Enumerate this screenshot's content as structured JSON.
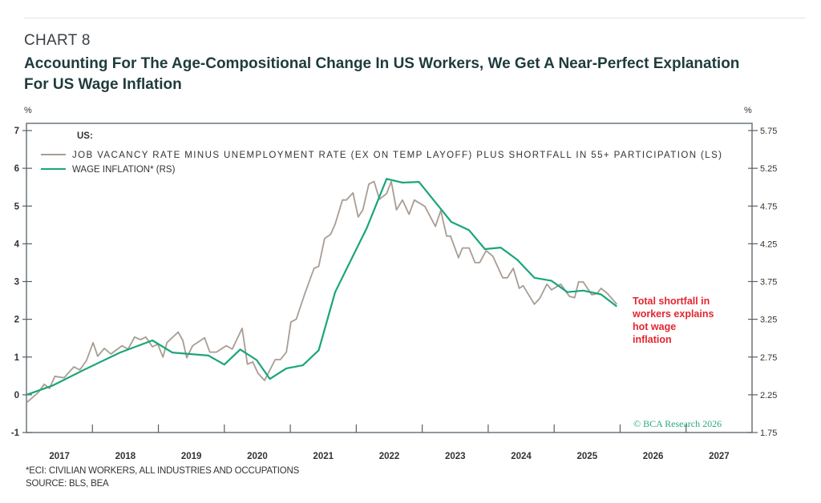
{
  "header": {
    "chart_number": "CHART 8",
    "title": "Accounting For The Age-Compositional Change In US Workers, We Get A Near-Perfect Explanation For US Wage Inflation"
  },
  "footer": {
    "note": "*ECI: CIVILIAN WORKERS, ALL INDUSTRIES AND OCCUPATIONS",
    "source": "SOURCE: BLS, BEA"
  },
  "chart_data": {
    "type": "line",
    "title": "Accounting For The Age-Compositional Change In US Workers, We Get A Near-Perfect Explanation For US Wage Inflation",
    "legend_title": "US:",
    "legend_placement": "top-left",
    "grid": false,
    "left_axis": {
      "label": "%",
      "range": [
        -1,
        7
      ],
      "ticks": [
        "-1",
        "0",
        "1",
        "2",
        "3",
        "4",
        "5",
        "6",
        "7"
      ]
    },
    "right_axis": {
      "label": "%",
      "range": [
        1.75,
        5.75
      ],
      "ticks": [
        "1.75",
        "2.25",
        "2.75",
        "3.25",
        "3.75",
        "4.25",
        "4.75",
        "5.25",
        "5.75"
      ]
    },
    "x_axis": {
      "range": [
        2017,
        2028
      ],
      "tick_labels": [
        "2017",
        "2018",
        "2019",
        "2020",
        "2021",
        "2022",
        "2023",
        "2024",
        "2025",
        "2026",
        "2027"
      ]
    },
    "annotation": {
      "text_lines": [
        "Total shortfall in",
        "workers explains",
        "hot wage",
        "inflation"
      ],
      "color": "#e3262f"
    },
    "watermark": "© BCA Research 2026",
    "series": [
      {
        "name": "JOB VACANCY RATE MINUS UNEMPLOYMENT RATE (EX ON TEMP LAYOFF) PLUS SHORTFALL IN 55+ PARTICIPATION (LS)",
        "axis": "left",
        "color": "#a89d93",
        "x": [
          2017.0,
          2017.18,
          2017.27,
          2017.35,
          2017.43,
          2017.57,
          2017.72,
          2017.81,
          2017.91,
          2018.01,
          2018.08,
          2018.18,
          2018.28,
          2018.45,
          2018.54,
          2018.64,
          2018.73,
          2018.81,
          2018.91,
          2018.99,
          2019.07,
          2019.13,
          2019.3,
          2019.37,
          2019.43,
          2019.52,
          2019.7,
          2019.78,
          2019.88,
          2020.03,
          2020.12,
          2020.27,
          2020.35,
          2020.43,
          2020.51,
          2020.61,
          2020.77,
          2020.85,
          2020.94,
          2021.01,
          2021.09,
          2021.22,
          2021.36,
          2021.43,
          2021.52,
          2021.61,
          2021.68,
          2021.79,
          2021.85,
          2021.95,
          2022.03,
          2022.1,
          2022.19,
          2022.27,
          2022.35,
          2022.46,
          2022.53,
          2022.61,
          2022.7,
          2022.8,
          2022.88,
          2023.04,
          2023.2,
          2023.28,
          2023.37,
          2023.43,
          2023.55,
          2023.61,
          2023.71,
          2023.8,
          2023.87,
          2023.97,
          2024.07,
          2024.22,
          2024.29,
          2024.38,
          2024.47,
          2024.53,
          2024.7,
          2024.78,
          2024.89,
          2024.96,
          2025.1,
          2025.23,
          2025.31,
          2025.37,
          2025.44,
          2025.57,
          2025.65,
          2025.71,
          2025.81,
          2025.95
        ],
        "values": [
          -0.21,
          0.06,
          0.28,
          0.17,
          0.49,
          0.45,
          0.74,
          0.66,
          0.91,
          1.38,
          1.02,
          1.23,
          1.08,
          1.3,
          1.21,
          1.53,
          1.46,
          1.53,
          1.27,
          1.34,
          1.0,
          1.38,
          1.66,
          1.44,
          0.98,
          1.3,
          1.51,
          1.13,
          1.13,
          1.3,
          1.21,
          1.76,
          0.81,
          0.87,
          0.57,
          0.38,
          0.93,
          0.93,
          1.13,
          1.93,
          2.0,
          2.68,
          3.35,
          3.4,
          4.14,
          4.25,
          4.52,
          5.16,
          5.16,
          5.35,
          4.71,
          4.9,
          5.58,
          5.65,
          5.18,
          5.33,
          5.65,
          4.9,
          5.16,
          4.78,
          5.16,
          4.99,
          4.46,
          4.88,
          4.2,
          4.2,
          3.63,
          3.89,
          3.89,
          3.5,
          3.5,
          3.82,
          3.67,
          3.1,
          3.1,
          3.35,
          2.82,
          2.89,
          2.4,
          2.55,
          2.93,
          2.78,
          2.93,
          2.61,
          2.57,
          2.99,
          2.99,
          2.65,
          2.68,
          2.82,
          2.68,
          2.4
        ]
      },
      {
        "name": "WAGE INFLATION* (RS)",
        "axis": "right",
        "color": "#1aa57a",
        "x": [
          2017.0,
          2017.39,
          2017.87,
          2018.42,
          2018.91,
          2019.21,
          2019.76,
          2020.0,
          2020.24,
          2020.49,
          2020.69,
          2020.94,
          2021.19,
          2021.43,
          2021.68,
          2022.16,
          2022.46,
          2022.7,
          2022.95,
          2023.44,
          2023.71,
          2023.95,
          2024.19,
          2024.44,
          2024.7,
          2024.96,
          2025.2,
          2025.44,
          2025.71,
          2025.95
        ],
        "values": [
          2.25,
          2.37,
          2.58,
          2.81,
          2.97,
          2.81,
          2.77,
          2.65,
          2.85,
          2.71,
          2.46,
          2.6,
          2.64,
          2.84,
          3.61,
          4.46,
          5.11,
          5.06,
          5.07,
          4.54,
          4.43,
          4.18,
          4.2,
          4.04,
          3.8,
          3.76,
          3.61,
          3.63,
          3.58,
          3.42
        ]
      }
    ]
  }
}
